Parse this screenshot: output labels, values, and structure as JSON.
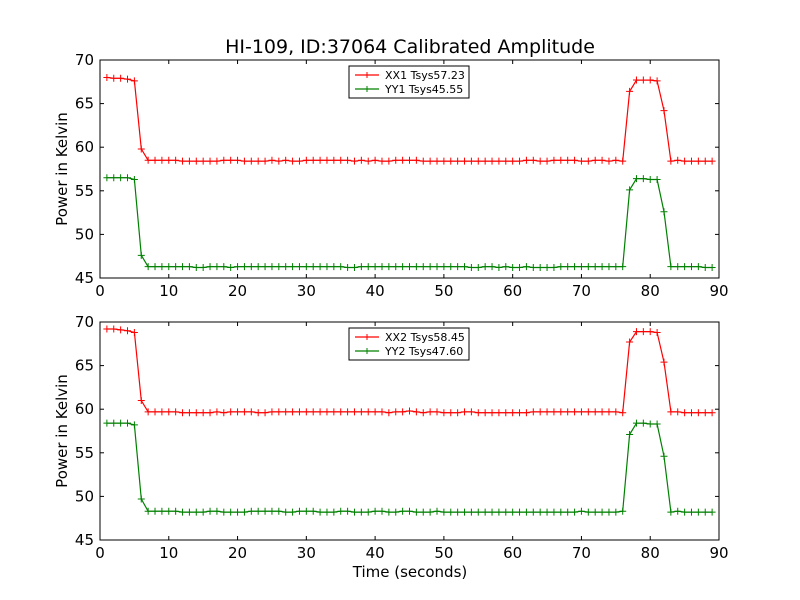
{
  "chart_data": {
    "type": "line",
    "title": "HI-109, ID:37064 Calibrated Amplitude",
    "xlabel": "Time (seconds)",
    "x": [
      1,
      2,
      3,
      4,
      5,
      6,
      7,
      8,
      9,
      10,
      11,
      12,
      13,
      14,
      15,
      16,
      17,
      18,
      19,
      20,
      21,
      22,
      23,
      24,
      25,
      26,
      27,
      28,
      29,
      30,
      31,
      32,
      33,
      34,
      35,
      36,
      37,
      38,
      39,
      40,
      41,
      42,
      43,
      44,
      45,
      46,
      47,
      48,
      49,
      50,
      51,
      52,
      53,
      54,
      55,
      56,
      57,
      58,
      59,
      60,
      61,
      62,
      63,
      64,
      65,
      66,
      67,
      68,
      69,
      70,
      71,
      72,
      73,
      74,
      75,
      76,
      77,
      78,
      79,
      80,
      81,
      82,
      83,
      84,
      85,
      86,
      87,
      88,
      89
    ],
    "panels": [
      {
        "ylabel": "Power in Kelvin",
        "xlim": [
          0,
          90
        ],
        "ylim": [
          45,
          70
        ],
        "xticks": [
          0,
          10,
          20,
          30,
          40,
          50,
          60,
          70,
          80,
          90
        ],
        "yticks": [
          45,
          50,
          55,
          60,
          65,
          70
        ],
        "legend_position": "top-center",
        "series": [
          {
            "name": "XX1 Tsys57.23",
            "color": "#ff0000",
            "values": [
              68.0,
              67.9,
              67.9,
              67.8,
              67.6,
              59.8,
              58.5,
              58.5,
              58.5,
              58.5,
              58.5,
              58.4,
              58.4,
              58.4,
              58.4,
              58.4,
              58.4,
              58.5,
              58.5,
              58.5,
              58.4,
              58.4,
              58.4,
              58.4,
              58.5,
              58.4,
              58.5,
              58.4,
              58.4,
              58.5,
              58.5,
              58.5,
              58.5,
              58.5,
              58.5,
              58.5,
              58.4,
              58.5,
              58.4,
              58.5,
              58.4,
              58.4,
              58.5,
              58.5,
              58.5,
              58.5,
              58.4,
              58.4,
              58.4,
              58.4,
              58.4,
              58.4,
              58.4,
              58.4,
              58.4,
              58.4,
              58.4,
              58.4,
              58.4,
              58.4,
              58.4,
              58.5,
              58.5,
              58.4,
              58.4,
              58.5,
              58.5,
              58.5,
              58.5,
              58.4,
              58.4,
              58.5,
              58.5,
              58.4,
              58.5,
              58.4,
              66.4,
              67.7,
              67.7,
              67.7,
              67.6,
              64.2,
              58.4,
              58.5,
              58.4,
              58.4,
              58.4,
              58.4,
              58.4
            ]
          },
          {
            "name": "YY1 Tsys45.55",
            "color": "#008000",
            "values": [
              56.5,
              56.5,
              56.5,
              56.5,
              56.3,
              47.6,
              46.3,
              46.3,
              46.3,
              46.3,
              46.3,
              46.3,
              46.3,
              46.2,
              46.2,
              46.3,
              46.3,
              46.3,
              46.2,
              46.3,
              46.3,
              46.3,
              46.3,
              46.3,
              46.3,
              46.3,
              46.3,
              46.3,
              46.3,
              46.3,
              46.3,
              46.3,
              46.3,
              46.3,
              46.3,
              46.2,
              46.2,
              46.3,
              46.3,
              46.3,
              46.3,
              46.3,
              46.3,
              46.3,
              46.3,
              46.3,
              46.3,
              46.3,
              46.3,
              46.3,
              46.3,
              46.3,
              46.3,
              46.2,
              46.2,
              46.3,
              46.3,
              46.2,
              46.3,
              46.2,
              46.2,
              46.3,
              46.2,
              46.2,
              46.2,
              46.2,
              46.3,
              46.3,
              46.3,
              46.3,
              46.3,
              46.3,
              46.3,
              46.3,
              46.3,
              46.3,
              55.1,
              56.4,
              56.4,
              56.3,
              56.3,
              52.6,
              46.3,
              46.3,
              46.3,
              46.3,
              46.3,
              46.2,
              46.2
            ]
          }
        ]
      },
      {
        "ylabel": "Power in Kelvin",
        "xlim": [
          0,
          90
        ],
        "ylim": [
          45,
          70
        ],
        "xticks": [
          0,
          10,
          20,
          30,
          40,
          50,
          60,
          70,
          80,
          90
        ],
        "yticks": [
          45,
          50,
          55,
          60,
          65,
          70
        ],
        "legend_position": "top-center",
        "series": [
          {
            "name": "XX2 Tsys58.45",
            "color": "#ff0000",
            "values": [
              69.2,
              69.2,
              69.1,
              69.0,
              68.8,
              61.0,
              59.7,
              59.7,
              59.7,
              59.7,
              59.7,
              59.6,
              59.6,
              59.6,
              59.6,
              59.6,
              59.7,
              59.6,
              59.7,
              59.7,
              59.7,
              59.7,
              59.6,
              59.6,
              59.7,
              59.7,
              59.7,
              59.7,
              59.7,
              59.7,
              59.7,
              59.7,
              59.7,
              59.7,
              59.7,
              59.7,
              59.7,
              59.7,
              59.7,
              59.7,
              59.7,
              59.6,
              59.7,
              59.7,
              59.8,
              59.7,
              59.6,
              59.7,
              59.7,
              59.6,
              59.6,
              59.6,
              59.7,
              59.7,
              59.6,
              59.6,
              59.6,
              59.6,
              59.6,
              59.6,
              59.6,
              59.6,
              59.7,
              59.7,
              59.7,
              59.7,
              59.7,
              59.7,
              59.7,
              59.7,
              59.7,
              59.7,
              59.7,
              59.7,
              59.7,
              59.6,
              67.7,
              68.9,
              68.9,
              68.9,
              68.8,
              65.4,
              59.7,
              59.7,
              59.6,
              59.6,
              59.6,
              59.6,
              59.6
            ]
          },
          {
            "name": "YY2 Tsys47.60",
            "color": "#008000",
            "values": [
              58.4,
              58.4,
              58.4,
              58.4,
              58.2,
              49.7,
              48.3,
              48.3,
              48.3,
              48.3,
              48.3,
              48.2,
              48.2,
              48.2,
              48.2,
              48.3,
              48.3,
              48.2,
              48.2,
              48.2,
              48.2,
              48.3,
              48.3,
              48.3,
              48.3,
              48.3,
              48.2,
              48.2,
              48.3,
              48.3,
              48.3,
              48.2,
              48.2,
              48.2,
              48.3,
              48.3,
              48.2,
              48.2,
              48.2,
              48.3,
              48.3,
              48.2,
              48.2,
              48.3,
              48.3,
              48.2,
              48.2,
              48.2,
              48.3,
              48.2,
              48.2,
              48.2,
              48.2,
              48.2,
              48.2,
              48.2,
              48.2,
              48.2,
              48.2,
              48.2,
              48.2,
              48.2,
              48.2,
              48.2,
              48.2,
              48.2,
              48.2,
              48.2,
              48.2,
              48.3,
              48.2,
              48.2,
              48.2,
              48.2,
              48.2,
              48.3,
              57.1,
              58.4,
              58.4,
              58.3,
              58.3,
              54.6,
              48.2,
              48.3,
              48.2,
              48.2,
              48.2,
              48.2,
              48.2
            ]
          }
        ]
      }
    ]
  }
}
